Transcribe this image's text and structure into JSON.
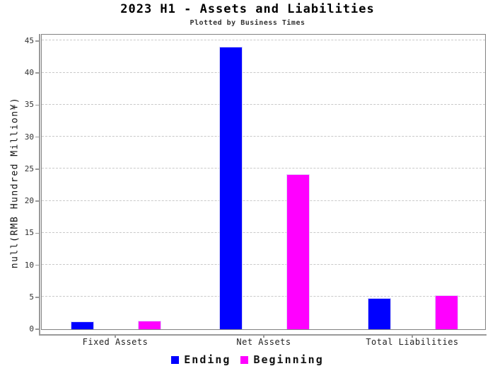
{
  "chart_data": {
    "type": "bar",
    "title": "2023 H1 - Assets and Liabilities",
    "subtitle": "Plotted by Business Times",
    "ylabel": "null(RMB Hundred Million¥)",
    "xlabel": "",
    "categories": [
      "Fixed Assets",
      "Net Assets",
      "Total Liabilities"
    ],
    "series": [
      {
        "name": "Ending",
        "color": "#0000ff",
        "values": [
          1.2,
          44.0,
          4.8
        ]
      },
      {
        "name": "Beginning",
        "color": "#ff00ff",
        "values": [
          1.3,
          24.2,
          5.2
        ]
      }
    ],
    "ylim": [
      0,
      46.25
    ],
    "yticks": [
      0,
      5,
      10,
      15,
      20,
      25,
      30,
      35,
      40,
      45
    ],
    "grid": "horizontal-dashed",
    "grid_color": "#c9c9c9",
    "axis_color": "#9a9a9a",
    "frame_color": "#828282",
    "legend_position": "bottom-center"
  }
}
